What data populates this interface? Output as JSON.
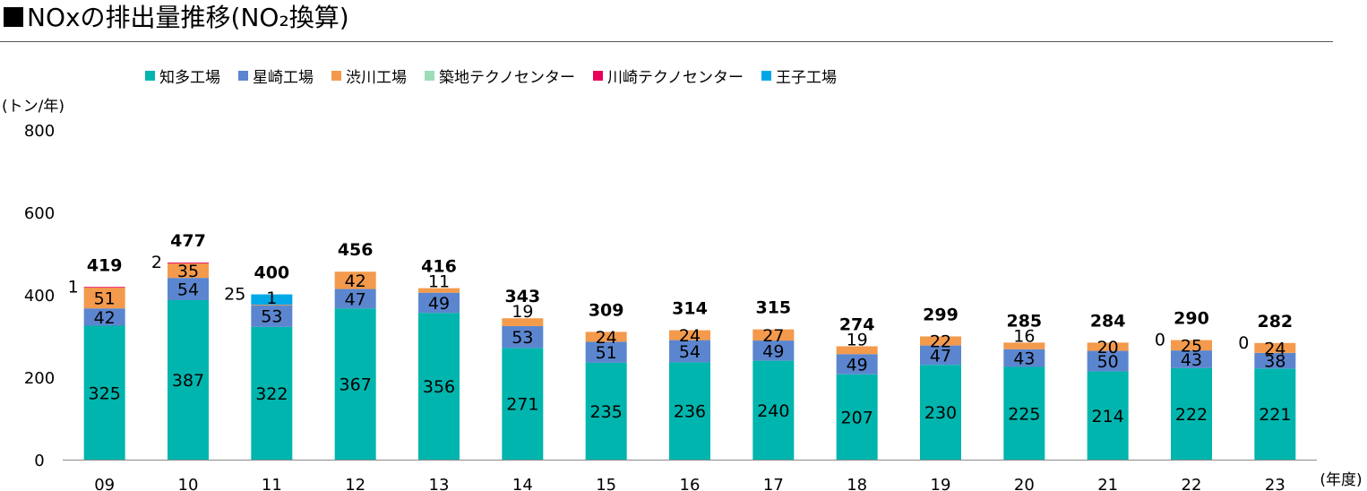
{
  "title": "NOxの排出量推移(NO₂換算)",
  "colors": {
    "chita": "#00b5ad",
    "hoshizaki": "#5b86cf",
    "shibukawa": "#f39a4c",
    "tsukiji": "#9ddcb8",
    "kawasaki": "#e8005a",
    "oji": "#00a9e6"
  },
  "chart_data": {
    "type": "bar",
    "stacked": true,
    "ylabel": "(トン/年)",
    "xlabel": "(年度)",
    "ylim": [
      0,
      800
    ],
    "yticks": [
      0,
      200,
      400,
      600,
      800
    ],
    "grid": false,
    "legend_position": "top",
    "categories": [
      "09",
      "10",
      "11",
      "12",
      "13",
      "14",
      "15",
      "16",
      "17",
      "18",
      "19",
      "20",
      "21",
      "22",
      "23"
    ],
    "series": [
      {
        "name": "知多工場",
        "color_key": "chita",
        "values": [
          325,
          387,
          322,
          367,
          356,
          271,
          235,
          236,
          240,
          207,
          230,
          225,
          214,
          222,
          221
        ]
      },
      {
        "name": "星崎工場",
        "color_key": "hoshizaki",
        "values": [
          42,
          54,
          53,
          47,
          49,
          53,
          51,
          54,
          49,
          49,
          47,
          43,
          50,
          43,
          38
        ]
      },
      {
        "name": "渋川工場",
        "color_key": "shibukawa",
        "values": [
          51,
          35,
          1,
          42,
          11,
          19,
          24,
          24,
          27,
          19,
          22,
          16,
          20,
          25,
          24
        ]
      },
      {
        "name": "築地テクノセンター",
        "color_key": "tsukiji",
        "values": [
          0,
          0,
          0,
          0,
          0,
          0,
          0,
          0,
          0,
          0,
          0,
          0,
          0,
          0,
          0
        ]
      },
      {
        "name": "川崎テクノセンター",
        "color_key": "kawasaki",
        "values": [
          1,
          2,
          0,
          0,
          0,
          0,
          0,
          0,
          0,
          0,
          0,
          0,
          0,
          0,
          0
        ]
      },
      {
        "name": "王子工場",
        "color_key": "oji",
        "values": [
          0,
          0,
          25,
          0,
          0,
          0,
          0,
          0,
          0,
          0,
          0,
          0,
          0,
          0,
          0
        ]
      }
    ],
    "totals": [
      419,
      477,
      400,
      456,
      416,
      343,
      309,
      314,
      315,
      274,
      299,
      285,
      284,
      290,
      282
    ],
    "side_labels": [
      {
        "category": "09",
        "text": "1"
      },
      {
        "category": "10",
        "text": "2"
      },
      {
        "category": "11",
        "text": "25"
      },
      {
        "category": "22",
        "text": "0"
      },
      {
        "category": "23",
        "text": "0"
      }
    ]
  }
}
